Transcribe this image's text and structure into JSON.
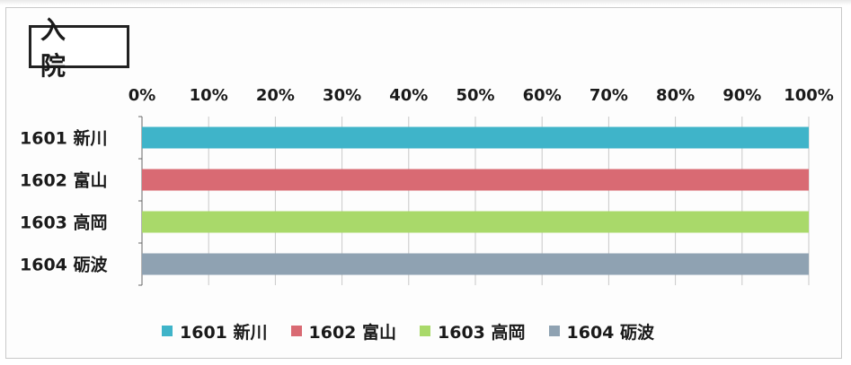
{
  "title": "入 院",
  "colors": {
    "series": [
      "#3fb4c9",
      "#d96a73",
      "#a9d96a",
      "#8fa2b2"
    ],
    "grid": "#c8c8c8",
    "axis": "#666666"
  },
  "chart_data": {
    "type": "bar",
    "orientation": "horizontal",
    "stacked": "percent",
    "categories": [
      "1601 新川",
      "1602 富山",
      "1603 高岡",
      "1604 砺波"
    ],
    "series": [
      {
        "name": "1601 新川",
        "values": [
          100,
          0,
          0,
          0
        ]
      },
      {
        "name": "1602 富山",
        "values": [
          0,
          100,
          0,
          0
        ]
      },
      {
        "name": "1603 高岡",
        "values": [
          0,
          0,
          100,
          0
        ]
      },
      {
        "name": "1604 砺波",
        "values": [
          0,
          0,
          0,
          100
        ]
      }
    ],
    "xlim": [
      0,
      100
    ],
    "xticks": [
      "0%",
      "10%",
      "20%",
      "30%",
      "40%",
      "50%",
      "60%",
      "70%",
      "80%",
      "90%",
      "100%"
    ],
    "grid": true,
    "legend_position": "bottom"
  }
}
